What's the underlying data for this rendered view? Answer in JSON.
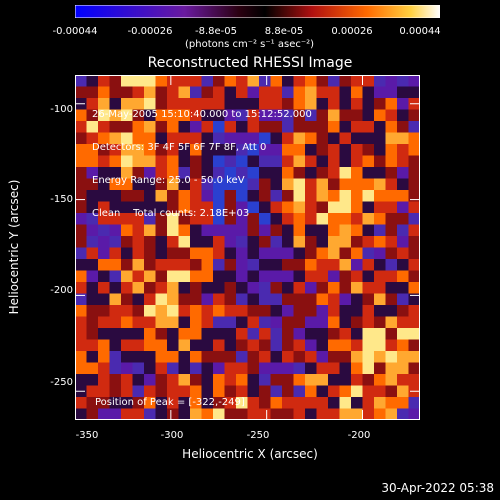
{
  "colorbar": {
    "ticks": [
      "-0.00044",
      "-0.00026",
      "-8.8e-05",
      "8.8e-05",
      "0.00026",
      "0.00044"
    ],
    "units": "(photons cm⁻² s⁻¹ asec⁻²)",
    "colors": [
      "#0000ff",
      "#6a1aa0",
      "#3a0000",
      "#000000",
      "#c01010",
      "#ff6a00",
      "#ffd040",
      "#ffffff"
    ]
  },
  "title": "Reconstructed RHESSI Image",
  "info": {
    "line1": "26-May-2005 15:10:40.000 to 15:12:52.000",
    "line2": "Detectors: 3F 4F 5F 6F 7F 8F, Att 0",
    "line3": "Energy Range: 25.0 - 50.0 keV",
    "line4": "Clean    Total counts: 2.18E+03"
  },
  "peak": "Position of Peak = [-322,-249]",
  "x_axis": {
    "label": "Heliocentric X (arcsec)",
    "ticks": [
      "-350",
      "-300",
      "-250",
      "-200"
    ],
    "values": [
      -350,
      -300,
      -250,
      -200
    ],
    "range": [
      -350,
      -170
    ]
  },
  "y_axis": {
    "label": "Heliocentric Y (arcsec)",
    "ticks": [
      "-100",
      "-150",
      "-200",
      "-250"
    ],
    "values": [
      -100,
      -150,
      -200,
      -250
    ],
    "range": [
      -265,
      -85
    ]
  },
  "timestamp": "30-Apr-2022 05:38"
}
